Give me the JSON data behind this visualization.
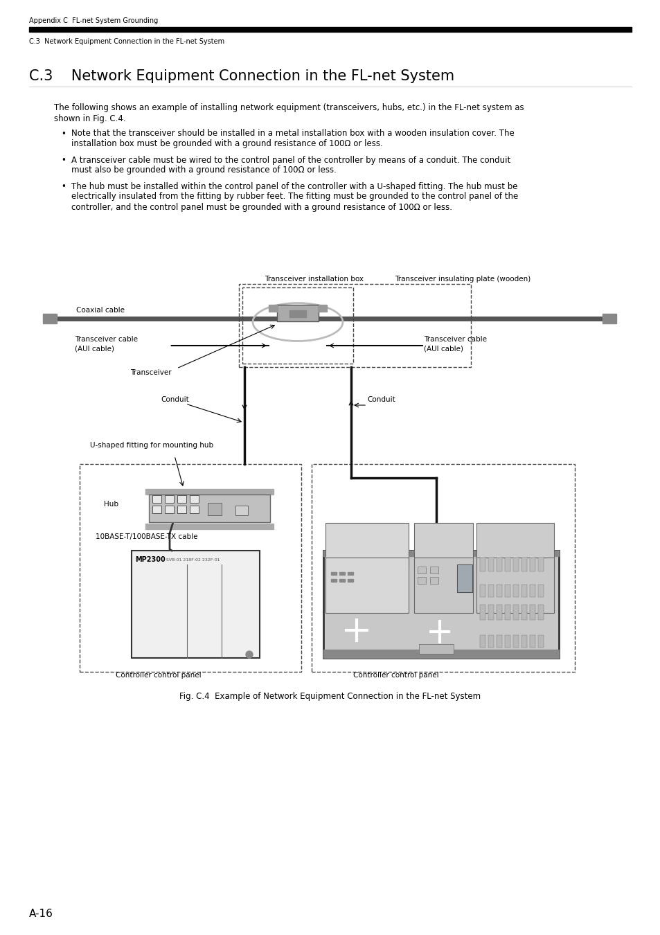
{
  "page_header_left": "Appendix C  FL-net System Grounding",
  "subheader2": "C.3  Network Equipment Connection in the FL-net System",
  "section_header": "C.3    Network Equipment Connection in the FL-net System",
  "intro_text": "The following shows an example of installing network equipment (transceivers, hubs, etc.) in the FL-net system as\nshown in Fig. C.4.",
  "bullet1": "Note that the transceiver should be installed in a metal installation box with a wooden insulation cover. The\ninstallation box must be grounded with a ground resistance of 100Ω or less.",
  "bullet2": "A transceiver cable must be wired to the control panel of the controller by means of a conduit. The conduit\nmust also be grounded with a ground resistance of 100Ω or less.",
  "bullet3": "The hub must be installed within the control panel of the controller with a U-shaped fitting. The hub must be\nelectrically insulated from the fitting by rubber feet. The fitting must be grounded to the control panel of the\ncontroller, and the control panel must be grounded with a ground resistance of 100Ω or less.",
  "fig_caption": "Fig. C.4  Example of Network Equipment Connection in the FL-net System",
  "page_number": "A-16",
  "background_color": "#ffffff",
  "text_color": "#000000"
}
